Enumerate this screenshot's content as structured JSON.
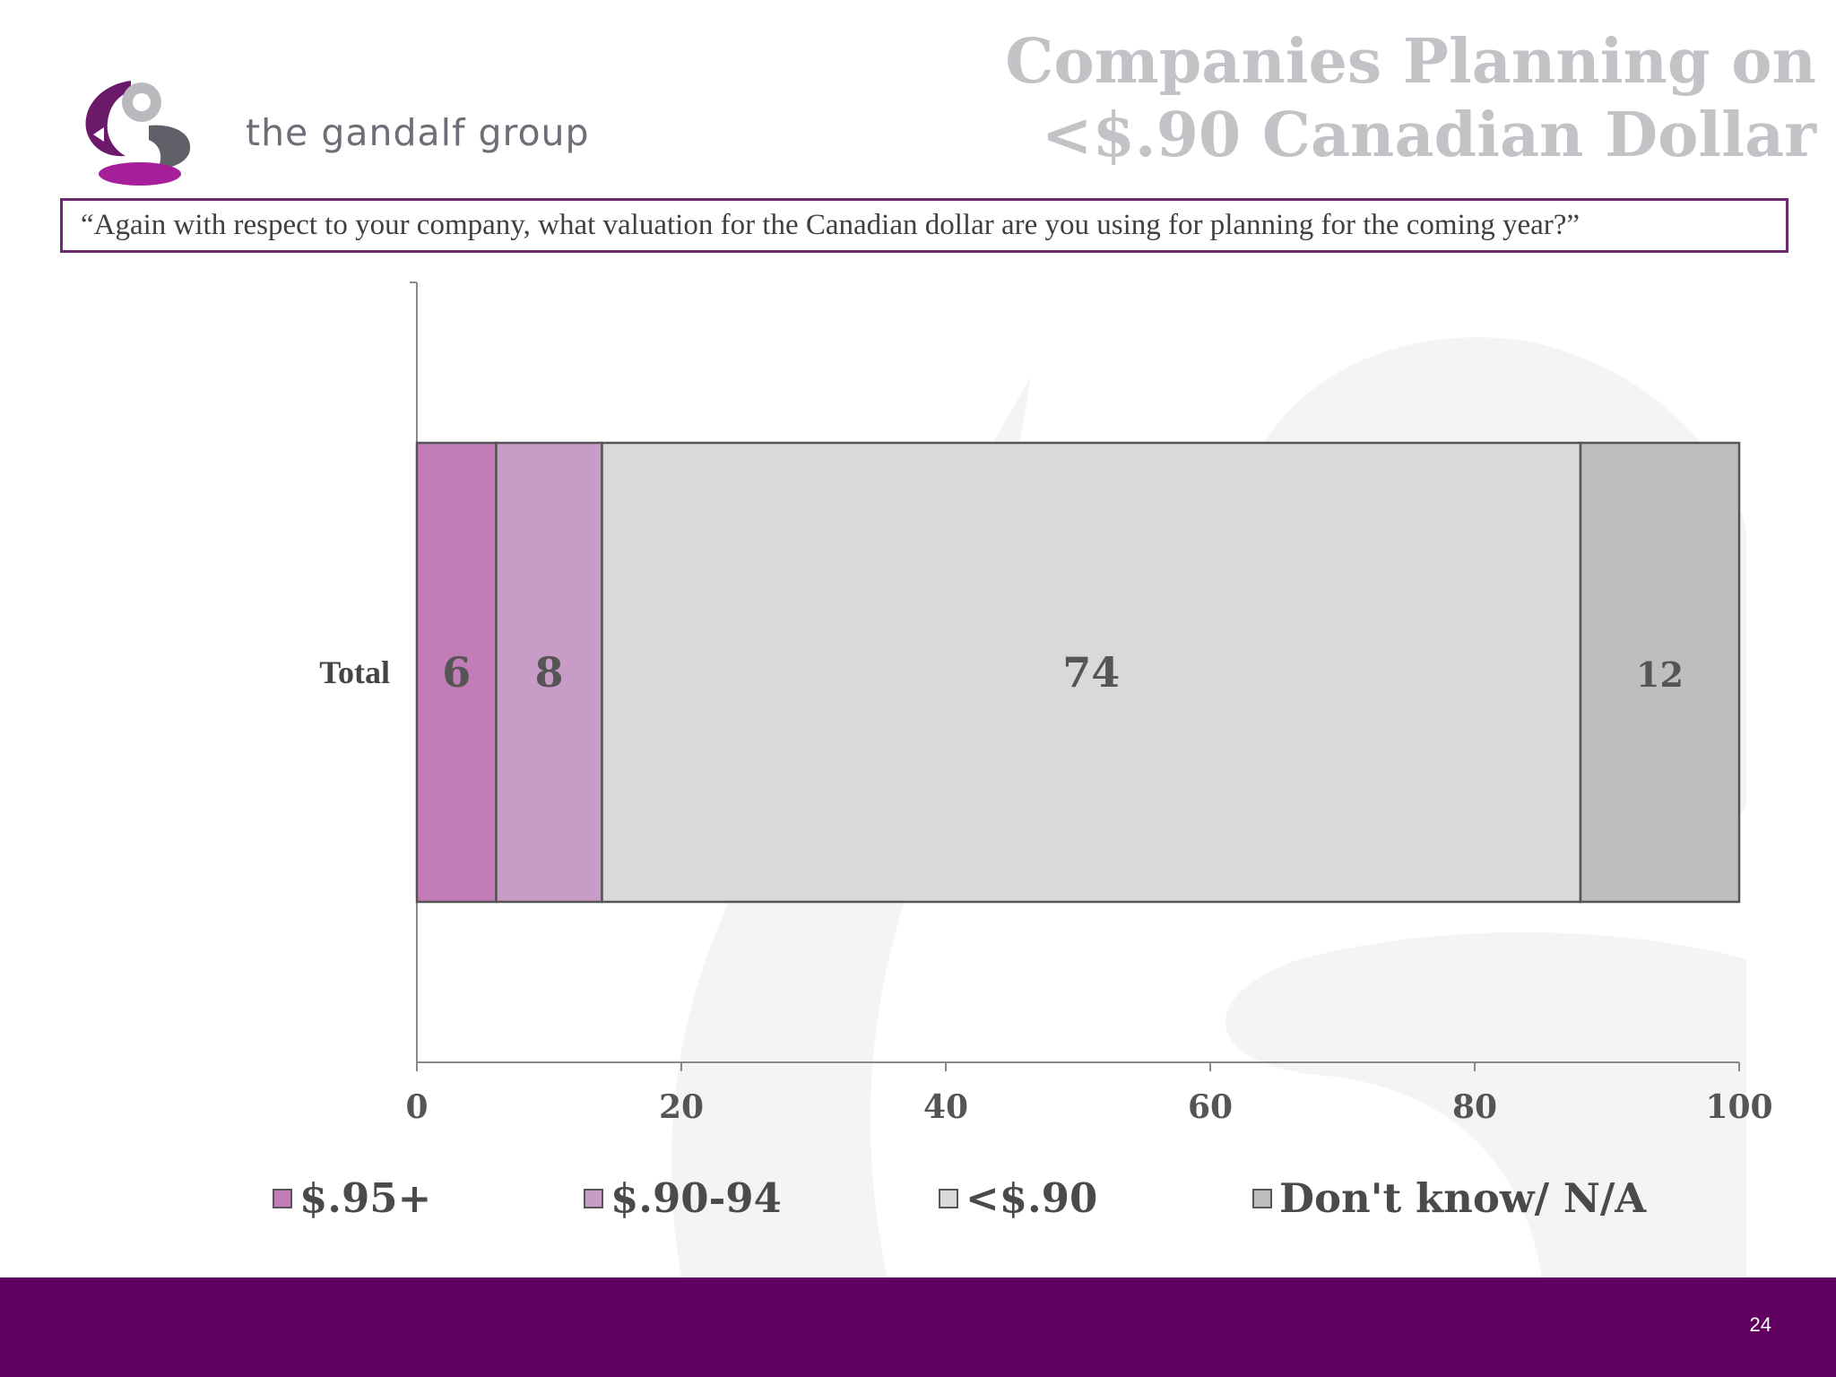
{
  "brand": {
    "name": "the gandalf group"
  },
  "slide": {
    "title_line1": "Companies Planning on",
    "title_line2": "<$.90 Canadian Dollar",
    "question": "“Again with respect to your company, what valuation for the Canadian dollar are you using for planning for the coming year?”",
    "page_number": "24"
  },
  "colors": {
    "brand_purple": "#600060",
    "series": [
      "#c27cb7",
      "#c99cc8",
      "#d9d9dc",
      "#bebec1"
    ]
  },
  "chart_data": {
    "type": "bar",
    "orientation": "horizontal",
    "stacked": true,
    "categories": [
      "Total"
    ],
    "series": [
      {
        "name": "$.95+",
        "values": [
          6
        ],
        "label": "6"
      },
      {
        "name": "$.90-94",
        "values": [
          8
        ],
        "label": "8"
      },
      {
        "name": "<$.90",
        "values": [
          74
        ],
        "label": "74"
      },
      {
        "name": "Don't know/ N/A",
        "values": [
          12
        ],
        "label": "12"
      }
    ],
    "xlim": [
      0,
      100
    ],
    "x_ticks": [
      "0",
      "20",
      "40",
      "60",
      "80",
      "100"
    ],
    "legend_position": "bottom",
    "grid": false
  }
}
